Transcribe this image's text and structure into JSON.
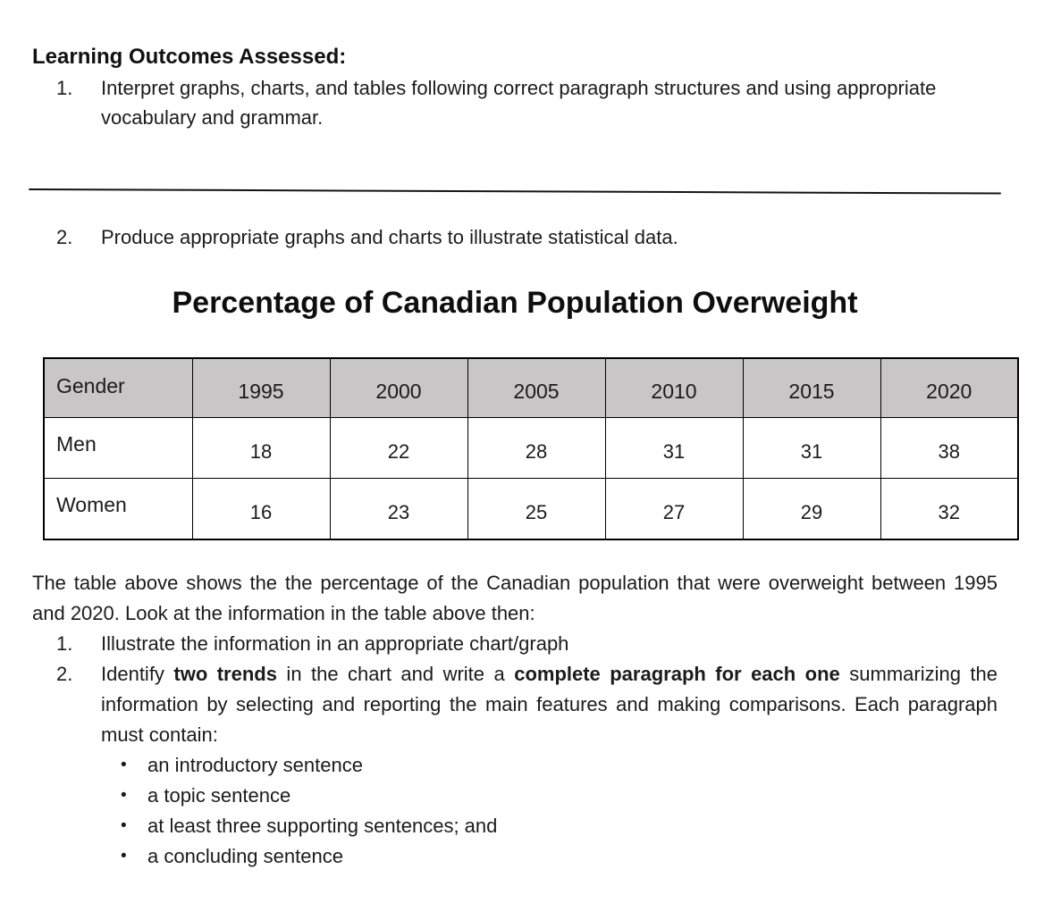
{
  "page": {
    "heading": "Learning Outcomes Assessed:",
    "outcomes": [
      {
        "number": "1.",
        "text": "Interpret graphs, charts, and tables following correct paragraph structures and using appropriate vocabulary and grammar."
      },
      {
        "number": "2.",
        "text": "Produce appropriate graphs and charts to illustrate statistical data."
      }
    ],
    "title": "Percentage of Canadian Population Overweight",
    "table": {
      "columns": [
        "Gender",
        "1995",
        "2000",
        "2005",
        "2010",
        "2015",
        "2020"
      ],
      "rows": [
        {
          "label": "Men",
          "values": [
            "18",
            "22",
            "28",
            "31",
            "31",
            "38"
          ]
        },
        {
          "label": "Women",
          "values": [
            "16",
            "23",
            "25",
            "27",
            "29",
            "32"
          ]
        }
      ]
    },
    "intro_paragraph": "The table above shows the the percentage of the Canadian population that were overweight between 1995 and 2020. Look at the information in the table above then:",
    "tasks": {
      "item1": {
        "number": "1.",
        "text": "Illustrate the information in an appropriate chart/graph"
      },
      "item2": {
        "number": "2.",
        "lead": "Identify ",
        "bold1": "two trends",
        "mid": " in the chart and write a ",
        "bold2": "complete paragraph for each one",
        "tail": " summarizing the information by selecting and reporting the main features and making comparisons. Each paragraph must contain:"
      }
    },
    "bullet_marker": "•",
    "bullets": [
      {
        "text": "an introductory sentence"
      },
      {
        "text": "a topic sentence"
      },
      {
        "text": "at least three supporting sentences; and"
      },
      {
        "text": "a concluding sentence"
      }
    ],
    "colors": {
      "table_header_bg": "#c8c6c6",
      "text": "#1b1b1b",
      "border": "#000000",
      "page_bg": "#ffffff"
    }
  },
  "chart_data": {
    "type": "table",
    "title": "Percentage of Canadian Population Overweight",
    "categories": [
      "1995",
      "2000",
      "2005",
      "2010",
      "2015",
      "2020"
    ],
    "series": [
      {
        "name": "Men",
        "values": [
          18,
          22,
          28,
          31,
          31,
          38
        ]
      },
      {
        "name": "Women",
        "values": [
          16,
          23,
          25,
          27,
          29,
          32
        ]
      }
    ],
    "units": "percent"
  }
}
